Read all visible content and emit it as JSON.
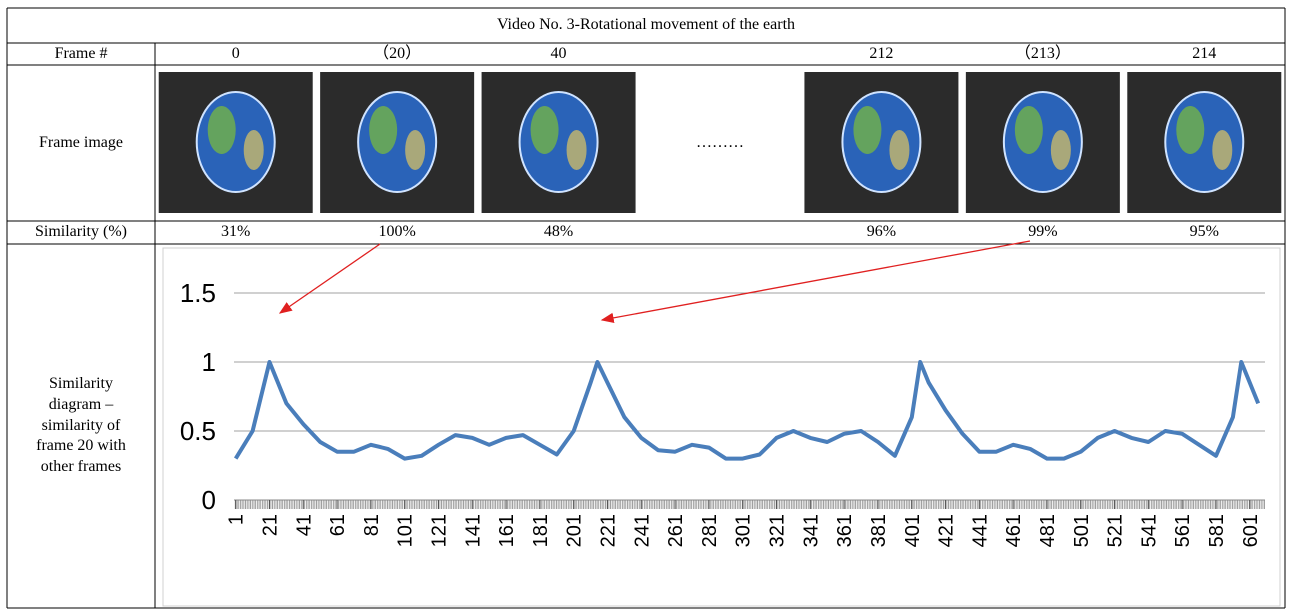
{
  "table": {
    "title": "Video No. 3-Rotational movement of the earth",
    "row_labels": {
      "frame": "Frame #",
      "image": "Frame image",
      "similarity": "Similarity (%)",
      "diagram": "Similarity diagram –similarity of frame 20 with other frames"
    },
    "columns": [
      {
        "frame": "0",
        "similarity": "31%"
      },
      {
        "frame": "（20）",
        "similarity": "100%"
      },
      {
        "frame": "40",
        "similarity": "48%"
      },
      {
        "frame": "212",
        "similarity": "96%"
      },
      {
        "frame": "（213）",
        "similarity": "99%"
      },
      {
        "frame": "214",
        "similarity": "95%"
      }
    ],
    "ellipsis": "………"
  },
  "chart_data": {
    "type": "line",
    "x": [
      1,
      11,
      21,
      31,
      41,
      51,
      61,
      71,
      81,
      91,
      101,
      111,
      121,
      131,
      141,
      151,
      161,
      171,
      181,
      191,
      201,
      211,
      215,
      221,
      231,
      241,
      251,
      261,
      271,
      281,
      291,
      301,
      311,
      321,
      331,
      341,
      351,
      361,
      371,
      381,
      391,
      401,
      406,
      411,
      421,
      431,
      441,
      451,
      461,
      471,
      481,
      491,
      501,
      511,
      521,
      531,
      541,
      551,
      561,
      571,
      581,
      591,
      596,
      601,
      606
    ],
    "series": [
      {
        "color": "#4a7ebb",
        "values": [
          0.3,
          0.5,
          1.0,
          0.7,
          0.55,
          0.42,
          0.35,
          0.35,
          0.4,
          0.37,
          0.3,
          0.32,
          0.4,
          0.47,
          0.45,
          0.4,
          0.45,
          0.47,
          0.4,
          0.33,
          0.5,
          0.85,
          1.0,
          0.85,
          0.6,
          0.45,
          0.36,
          0.35,
          0.4,
          0.38,
          0.3,
          0.3,
          0.33,
          0.45,
          0.5,
          0.45,
          0.42,
          0.48,
          0.5,
          0.42,
          0.32,
          0.6,
          1.0,
          0.85,
          0.65,
          0.48,
          0.35,
          0.35,
          0.4,
          0.37,
          0.3,
          0.3,
          0.35,
          0.45,
          0.5,
          0.45,
          0.42,
          0.5,
          0.48,
          0.4,
          0.32,
          0.6,
          1.0,
          0.85,
          0.7
        ]
      }
    ],
    "xlim": [
      0,
      610
    ],
    "ylim": [
      0,
      1.5
    ],
    "xticks": [
      1,
      21,
      41,
      61,
      81,
      101,
      121,
      141,
      161,
      181,
      201,
      221,
      241,
      261,
      281,
      301,
      321,
      341,
      361,
      381,
      401,
      421,
      441,
      461,
      481,
      501,
      521,
      541,
      561,
      581,
      601
    ],
    "yticks": [
      0,
      0.5,
      1,
      1.5
    ],
    "grid": true
  }
}
